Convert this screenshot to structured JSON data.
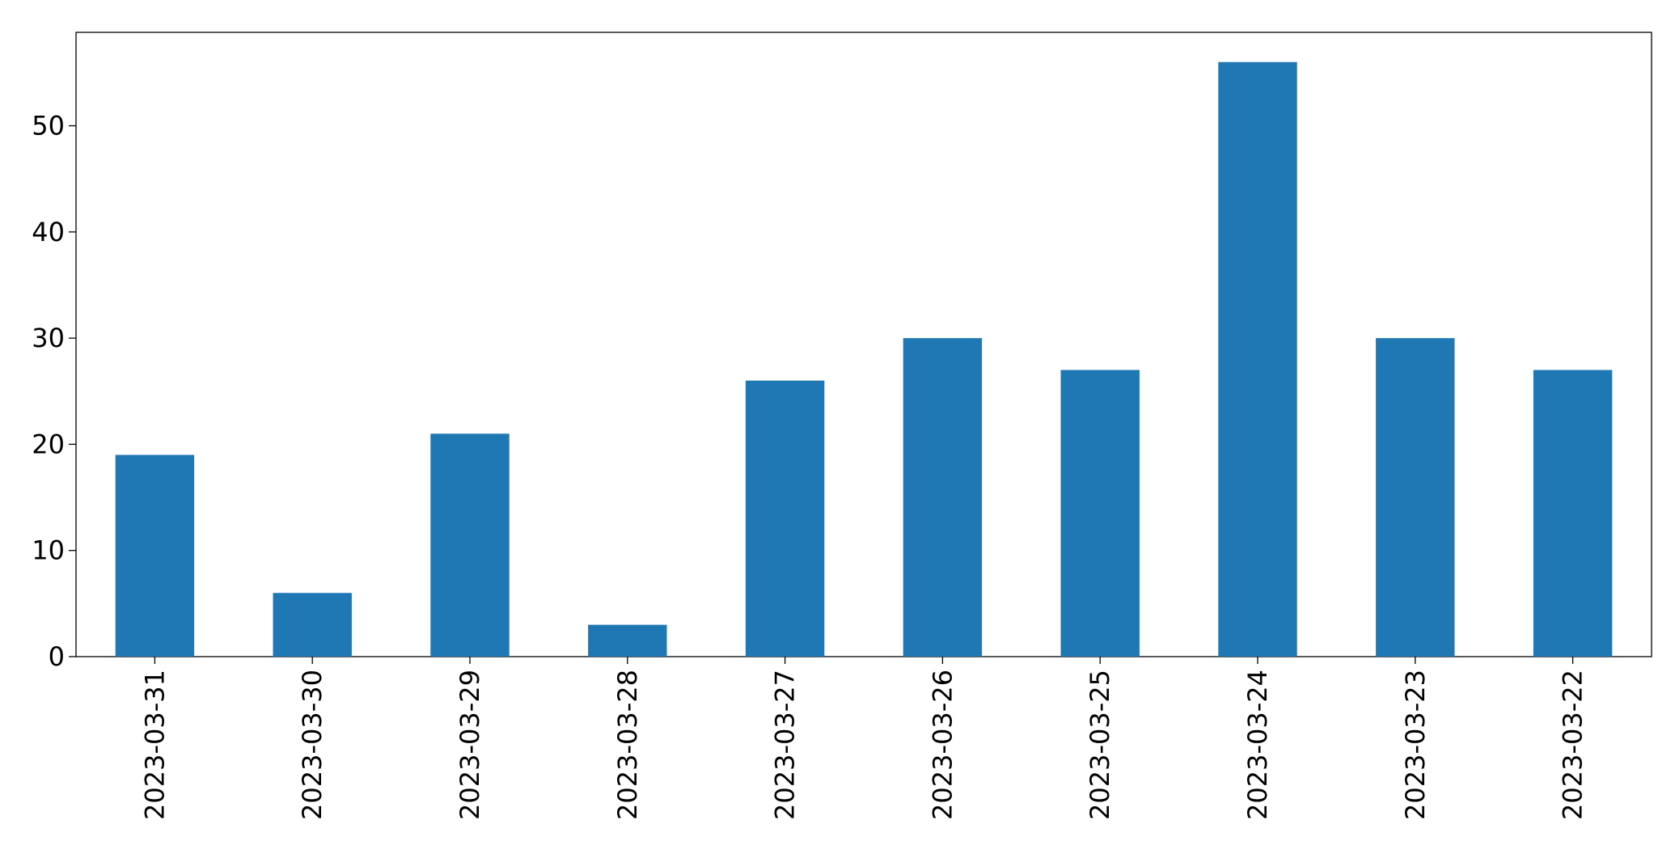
{
  "chart_data": {
    "type": "bar",
    "categories": [
      "2023-03-31",
      "2023-03-30",
      "2023-03-29",
      "2023-03-28",
      "2023-03-27",
      "2023-03-26",
      "2023-03-25",
      "2023-03-24",
      "2023-03-23",
      "2023-03-22"
    ],
    "values": [
      19,
      6,
      21,
      3,
      26,
      30,
      27,
      56,
      30,
      27
    ],
    "color": "#1f77b4",
    "ylim": [
      0,
      58.8
    ],
    "yticks": [
      0,
      10,
      20,
      30,
      40,
      50
    ],
    "grid": false
  }
}
